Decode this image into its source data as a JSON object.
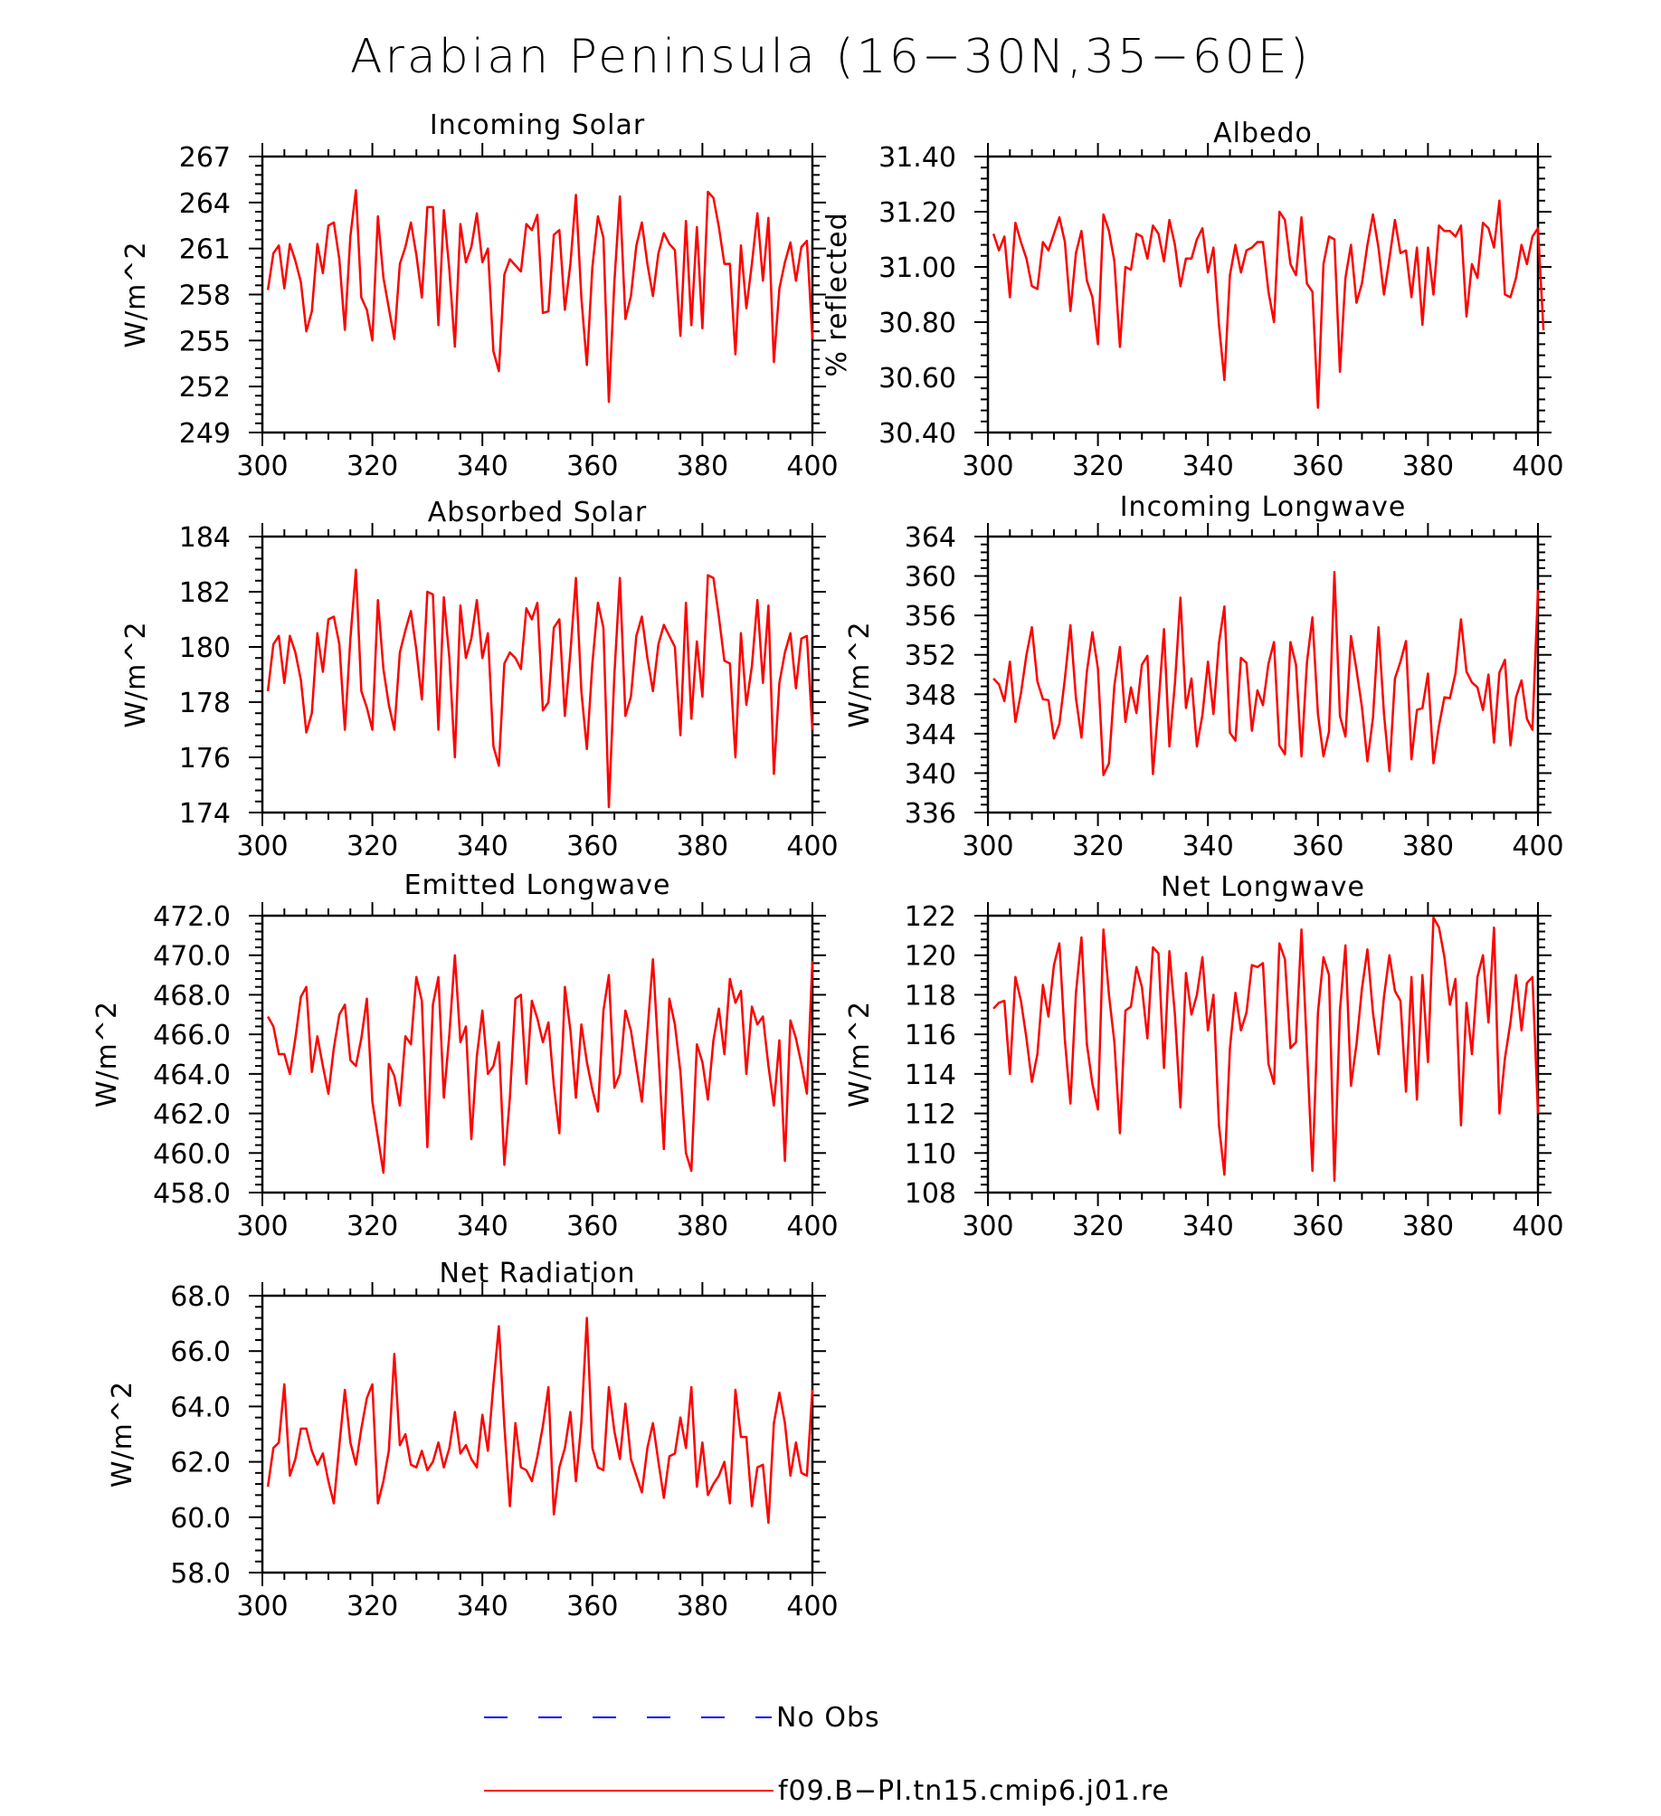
{
  "figure": {
    "title": "Arabian Peninsula (16−30N,35−60E)"
  },
  "legend": {
    "entries": [
      {
        "label": "No Obs",
        "color": "#0000ff",
        "style": "dashed"
      },
      {
        "label": "f09.B−PI.tn15.cmip6.j01.re",
        "color": "#ff0000",
        "style": "solid"
      }
    ]
  },
  "chart_data": [
    {
      "type": "line",
      "title": "Incoming Solar",
      "ylabel": "W/m^2",
      "xlim": [
        300,
        400
      ],
      "ylim": [
        249,
        267
      ],
      "xticks": [
        "300",
        "320",
        "340",
        "360",
        "380",
        "400"
      ],
      "yticks": [
        "249",
        "252",
        "255",
        "258",
        "261",
        "264",
        "267"
      ],
      "series": [
        {
          "color": "#ff0000",
          "x_start": 301,
          "x_step": 1,
          "values": [
            258.3,
            260.7,
            261.2,
            258.4,
            261.3,
            260.2,
            258.8,
            255.6,
            256.9,
            261.3,
            259.4,
            262.5,
            262.7,
            260.3,
            255.7,
            261.8,
            264.8,
            257.8,
            257.0,
            255.0,
            263.1,
            259.1,
            257.1,
            255.1,
            260.0,
            261.1,
            262.7,
            260.6,
            257.8,
            263.7,
            263.7,
            256.0,
            263.5,
            259.6,
            254.6,
            262.6,
            260.1,
            261.1,
            263.3,
            260.1,
            261.0,
            254.3,
            253.0,
            259.3,
            260.3,
            259.9,
            259.5,
            262.6,
            262.2,
            263.2,
            256.8,
            256.9,
            261.9,
            262.2,
            257.0,
            260.0,
            264.5,
            257.8,
            253.4,
            259.8,
            263.1,
            261.7,
            251.0,
            258.8,
            264.4,
            256.4,
            257.9,
            261.2,
            262.7,
            260.0,
            257.9,
            260.7,
            262.0,
            261.3,
            260.9,
            255.3,
            262.8,
            256.0,
            262.4,
            255.8,
            264.7,
            264.3,
            262.4,
            260.0,
            260.0,
            254.1,
            261.2,
            257.1,
            260.0,
            263.3,
            258.9,
            263.0,
            253.6,
            258.4,
            260.1,
            261.4,
            258.9,
            261.1,
            261.5,
            255.1
          ]
        }
      ]
    },
    {
      "type": "line",
      "title": "Albedo",
      "ylabel": "% reflected",
      "xlim": [
        300,
        400
      ],
      "ylim": [
        30.4,
        31.4
      ],
      "xticks": [
        "300",
        "320",
        "340",
        "360",
        "380",
        "400"
      ],
      "yticks": [
        "30.40",
        "30.60",
        "30.80",
        "31.00",
        "31.20",
        "31.40"
      ],
      "series": [
        {
          "color": "#ff0000",
          "x_start": 301,
          "x_step": 1,
          "values": [
            31.12,
            31.06,
            31.11,
            30.89,
            31.16,
            31.09,
            31.03,
            30.93,
            30.92,
            31.09,
            31.06,
            31.12,
            31.18,
            31.09,
            30.84,
            31.05,
            31.13,
            30.95,
            30.89,
            30.72,
            31.19,
            31.13,
            31.02,
            30.71,
            31.0,
            30.99,
            31.12,
            31.11,
            31.03,
            31.15,
            31.12,
            31.02,
            31.17,
            31.08,
            30.93,
            31.03,
            31.03,
            31.1,
            31.14,
            30.98,
            31.07,
            30.79,
            30.59,
            30.97,
            31.08,
            30.98,
            31.06,
            31.07,
            31.09,
            31.09,
            30.91,
            30.8,
            31.2,
            31.17,
            31.01,
            30.97,
            31.18,
            30.94,
            30.91,
            30.49,
            31.01,
            31.11,
            31.1,
            30.62,
            30.96,
            31.08,
            30.87,
            30.94,
            31.08,
            31.19,
            31.07,
            30.9,
            31.03,
            31.17,
            31.05,
            31.06,
            30.89,
            31.07,
            30.79,
            31.07,
            30.9,
            31.15,
            31.13,
            31.13,
            31.11,
            31.15,
            30.82,
            31.01,
            30.96,
            31.16,
            31.14,
            31.07,
            31.24,
            30.9,
            30.89,
            30.96,
            31.08,
            31.01,
            31.11,
            31.14,
            30.77
          ]
        }
      ]
    },
    {
      "type": "line",
      "title": "Absorbed Solar",
      "ylabel": "W/m^2",
      "xlim": [
        300,
        400
      ],
      "ylim": [
        174,
        184
      ],
      "xticks": [
        "300",
        "320",
        "340",
        "360",
        "380",
        "400"
      ],
      "yticks": [
        "174",
        "176",
        "178",
        "180",
        "182",
        "184"
      ],
      "series": [
        {
          "color": "#ff0000",
          "x_start": 301,
          "x_step": 1,
          "values": [
            178.4,
            180.1,
            180.4,
            178.7,
            180.4,
            179.8,
            178.8,
            176.9,
            177.6,
            180.5,
            179.1,
            181.0,
            181.1,
            180.1,
            177.0,
            180.3,
            182.8,
            178.4,
            177.8,
            177.0,
            181.7,
            179.2,
            177.9,
            177.0,
            179.8,
            180.6,
            181.3,
            179.9,
            178.1,
            182.0,
            181.9,
            177.0,
            181.8,
            179.6,
            176.0,
            181.5,
            179.6,
            180.3,
            181.7,
            179.6,
            180.5,
            176.4,
            175.7,
            179.4,
            179.8,
            179.6,
            179.2,
            181.4,
            181.0,
            181.6,
            177.7,
            178.0,
            180.7,
            181.0,
            177.5,
            179.8,
            182.5,
            178.4,
            176.3,
            179.4,
            181.6,
            180.7,
            174.2,
            179.0,
            182.5,
            177.5,
            178.2,
            180.4,
            181.1,
            179.6,
            178.4,
            180.1,
            180.8,
            180.4,
            180.0,
            176.8,
            181.6,
            177.4,
            180.2,
            178.2,
            182.6,
            182.5,
            181.1,
            179.5,
            179.4,
            176.0,
            180.5,
            177.9,
            179.3,
            181.7,
            178.7,
            181.5,
            175.4,
            178.7,
            179.8,
            180.5,
            178.5,
            180.3,
            180.4,
            177.0
          ]
        }
      ]
    },
    {
      "type": "line",
      "title": "Incoming Longwave",
      "ylabel": "W/m^2",
      "xlim": [
        300,
        400
      ],
      "ylim": [
        336,
        364
      ],
      "xticks": [
        "300",
        "320",
        "340",
        "360",
        "380",
        "400"
      ],
      "yticks": [
        "336",
        "340",
        "344",
        "348",
        "352",
        "356",
        "360",
        "364"
      ],
      "series": [
        {
          "color": "#ff0000",
          "x_start": 301,
          "x_step": 1,
          "values": [
            349.6,
            349.0,
            347.3,
            351.3,
            345.2,
            348.1,
            352.0,
            354.8,
            349.3,
            347.5,
            347.4,
            343.5,
            345.0,
            349.6,
            355.0,
            347.6,
            343.6,
            350.3,
            354.3,
            350.6,
            339.8,
            341.0,
            348.9,
            352.8,
            345.2,
            348.7,
            346.1,
            351.0,
            351.9,
            339.9,
            346.9,
            354.6,
            342.7,
            349.1,
            357.8,
            346.6,
            349.6,
            342.7,
            345.9,
            351.3,
            346.0,
            353.2,
            356.9,
            344.1,
            343.3,
            351.7,
            351.2,
            344.3,
            348.4,
            346.9,
            351.1,
            353.3,
            342.8,
            341.9,
            353.3,
            351.0,
            341.7,
            351.2,
            355.8,
            346.0,
            341.7,
            344.2,
            360.4,
            345.8,
            343.7,
            353.9,
            350.5,
            346.7,
            341.2,
            345.6,
            354.8,
            346.0,
            340.2,
            349.6,
            351.3,
            353.4,
            341.4,
            346.4,
            346.6,
            350.1,
            341.0,
            344.8,
            347.7,
            347.6,
            350.1,
            355.6,
            350.3,
            349.2,
            348.7,
            346.4,
            350.0,
            343.1,
            350.2,
            351.5,
            342.8,
            347.7,
            349.4,
            345.5,
            344.4,
            358.6
          ]
        }
      ]
    },
    {
      "type": "line",
      "title": "Emitted Longwave",
      "ylabel": "W/m^2",
      "xlim": [
        300,
        400
      ],
      "ylim": [
        458,
        472
      ],
      "xticks": [
        "300",
        "320",
        "340",
        "360",
        "380",
        "400"
      ],
      "yticks": [
        "458.0",
        "460.0",
        "462.0",
        "464.0",
        "466.0",
        "468.0",
        "470.0",
        "472.0"
      ],
      "series": [
        {
          "color": "#ff0000",
          "x_start": 301,
          "x_step": 1,
          "values": [
            466.9,
            466.4,
            465.0,
            465.0,
            464.0,
            465.8,
            467.9,
            468.4,
            464.1,
            465.9,
            464.4,
            463.0,
            465.3,
            467.0,
            467.5,
            464.7,
            464.4,
            465.8,
            467.8,
            462.6,
            460.8,
            459.0,
            464.5,
            463.9,
            462.4,
            465.9,
            465.5,
            468.9,
            467.7,
            460.3,
            467.5,
            468.9,
            462.8,
            466.0,
            470.0,
            465.6,
            466.4,
            460.7,
            464.9,
            467.2,
            464.0,
            464.4,
            465.6,
            459.4,
            462.8,
            467.8,
            468.0,
            463.5,
            467.7,
            466.8,
            465.6,
            466.6,
            463.4,
            461.0,
            468.4,
            466.2,
            462.8,
            466.5,
            464.6,
            463.2,
            462.1,
            467.2,
            469.0,
            463.3,
            464.0,
            467.2,
            466.2,
            464.4,
            462.6,
            466.1,
            469.8,
            465.0,
            460.2,
            467.8,
            466.5,
            464.1,
            460.0,
            459.1,
            465.5,
            464.6,
            462.7,
            465.7,
            467.3,
            465.0,
            468.8,
            467.6,
            468.2,
            464.0,
            467.4,
            466.5,
            466.9,
            464.4,
            462.4,
            465.7,
            459.6,
            466.7,
            465.8,
            464.5,
            463.0,
            469.7
          ]
        }
      ]
    },
    {
      "type": "line",
      "title": "Net Longwave",
      "ylabel": "W/m^2",
      "xlim": [
        300,
        400
      ],
      "ylim": [
        108,
        122
      ],
      "xticks": [
        "300",
        "320",
        "340",
        "360",
        "380",
        "400"
      ],
      "yticks": [
        "108",
        "110",
        "112",
        "114",
        "116",
        "118",
        "120",
        "122"
      ],
      "series": [
        {
          "color": "#ff0000",
          "x_start": 301,
          "x_step": 1,
          "values": [
            117.3,
            117.6,
            117.7,
            114.0,
            118.9,
            117.7,
            115.8,
            113.6,
            115.0,
            118.5,
            116.9,
            119.5,
            120.6,
            115.7,
            112.5,
            118.1,
            120.9,
            115.5,
            113.5,
            112.2,
            121.3,
            118.0,
            115.6,
            111.0,
            117.2,
            117.4,
            119.4,
            118.4,
            115.8,
            120.4,
            120.1,
            114.3,
            120.2,
            117.0,
            112.3,
            119.1,
            117.0,
            118.0,
            119.9,
            116.2,
            118.0,
            111.4,
            108.9,
            115.3,
            118.1,
            116.2,
            117.1,
            119.5,
            119.4,
            119.6,
            114.5,
            113.5,
            120.6,
            119.8,
            115.3,
            115.6,
            121.3,
            115.3,
            109.1,
            117.1,
            119.9,
            119.0,
            108.6,
            117.2,
            120.5,
            113.4,
            115.5,
            118.3,
            120.3,
            117.1,
            115.0,
            117.9,
            120.0,
            118.2,
            117.7,
            113.1,
            118.9,
            112.7,
            119.0,
            114.6,
            121.9,
            121.4,
            119.9,
            117.5,
            118.8,
            111.4,
            117.6,
            115.0,
            118.9,
            120.0,
            116.6,
            121.4,
            112.0,
            114.8,
            116.6,
            119.0,
            116.2,
            118.6,
            118.9,
            112.0
          ]
        }
      ]
    },
    {
      "type": "line",
      "title": "Net Radiation",
      "ylabel": "W/m^2",
      "xlim": [
        300,
        400
      ],
      "ylim": [
        58,
        68
      ],
      "xticks": [
        "300",
        "320",
        "340",
        "360",
        "380",
        "400"
      ],
      "yticks": [
        "58.0",
        "60.0",
        "62.0",
        "64.0",
        "66.0",
        "68.0"
      ],
      "series": [
        {
          "color": "#ff0000",
          "x_start": 301,
          "x_step": 1,
          "values": [
            61.1,
            62.5,
            62.7,
            64.8,
            61.5,
            62.1,
            63.2,
            63.2,
            62.4,
            61.9,
            62.3,
            61.3,
            60.5,
            62.6,
            64.6,
            62.7,
            61.9,
            63.2,
            64.3,
            64.8,
            60.5,
            61.3,
            62.4,
            65.9,
            62.6,
            63.0,
            61.9,
            61.8,
            62.4,
            61.7,
            62.0,
            62.7,
            61.8,
            62.5,
            63.8,
            62.3,
            62.6,
            62.1,
            61.8,
            63.7,
            62.4,
            64.8,
            66.9,
            63.3,
            60.4,
            63.4,
            61.8,
            61.7,
            61.3,
            62.2,
            63.3,
            64.7,
            60.1,
            61.8,
            62.5,
            63.8,
            61.3,
            63.4,
            67.2,
            62.5,
            61.8,
            61.7,
            64.7,
            63.1,
            62.1,
            64.1,
            62.1,
            61.5,
            60.9,
            62.5,
            63.4,
            62.0,
            60.7,
            62.2,
            62.3,
            63.6,
            62.5,
            64.7,
            61.1,
            62.7,
            60.8,
            61.2,
            61.5,
            62.0,
            60.5,
            64.6,
            62.9,
            62.9,
            60.4,
            61.8,
            61.9,
            59.8,
            63.4,
            64.5,
            63.4,
            61.5,
            62.7,
            61.6,
            61.5,
            64.6
          ]
        }
      ]
    }
  ]
}
